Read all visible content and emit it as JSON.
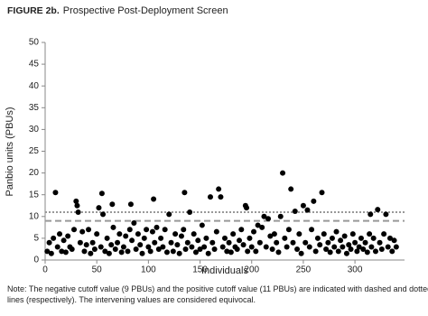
{
  "chart_data": {
    "type": "scatter",
    "title_label": "FIGURE 2b.",
    "title": "Prospective Post-Deployment Screen",
    "x_label": "Individuals",
    "y_label": "Panbio units (PBUs)",
    "note": [
      "Note: The negative cutoff value (9 PBUs) and the positive cutoff value (11 PBUs) are indicated with dashed and dotted",
      "lines (respectively). The intervening values are considered equivocal."
    ],
    "color": "#000000",
    "xlim": [
      0,
      348
    ],
    "xticks": [
      0,
      50,
      100,
      150,
      200,
      250,
      300
    ],
    "ylim": [
      0,
      50
    ],
    "yticks": [
      0,
      5,
      10,
      15,
      20,
      25,
      30,
      35,
      40,
      45,
      50
    ],
    "reference_lines": [
      {
        "value": 9,
        "style": "dashed",
        "color": "#999999"
      },
      {
        "value": 11,
        "style": "dotted",
        "color": "#999999"
      }
    ],
    "x": [
      2,
      4,
      6,
      8,
      10,
      12,
      14,
      16,
      18,
      20,
      22,
      24,
      26,
      28,
      30,
      31,
      32,
      34,
      36,
      38,
      40,
      42,
      44,
      46,
      48,
      50,
      52,
      54,
      55,
      56,
      58,
      60,
      62,
      64,
      65,
      66,
      68,
      70,
      72,
      74,
      76,
      78,
      80,
      82,
      83,
      84,
      86,
      88,
      90,
      92,
      94,
      96,
      98,
      100,
      102,
      104,
      105,
      106,
      108,
      110,
      112,
      114,
      116,
      118,
      120,
      122,
      124,
      126,
      128,
      130,
      132,
      134,
      135,
      136,
      138,
      140,
      142,
      144,
      146,
      148,
      150,
      152,
      154,
      156,
      158,
      160,
      162,
      164,
      166,
      168,
      170,
      172,
      174,
      176,
      178,
      180,
      182,
      184,
      186,
      188,
      190,
      192,
      194,
      195,
      196,
      198,
      200,
      202,
      204,
      206,
      208,
      210,
      212,
      214,
      216,
      218,
      220,
      222,
      224,
      226,
      228,
      230,
      232,
      234,
      236,
      238,
      240,
      242,
      244,
      246,
      248,
      250,
      252,
      254,
      256,
      258,
      260,
      262,
      264,
      266,
      268,
      270,
      272,
      274,
      276,
      278,
      280,
      282,
      284,
      286,
      288,
      290,
      292,
      294,
      296,
      298,
      300,
      302,
      304,
      306,
      308,
      310,
      312,
      314,
      315,
      316,
      318,
      320,
      322,
      324,
      326,
      328,
      330,
      332,
      334,
      336,
      338,
      340
    ],
    "values": [
      2,
      4,
      1.5,
      5,
      15.5,
      3,
      6,
      2,
      4.5,
      1.8,
      5.5,
      3,
      2.5,
      7,
      13.5,
      12.5,
      11,
      4,
      6.5,
      2,
      3.5,
      7,
      1.5,
      4,
      2.5,
      6,
      12,
      3,
      15.3,
      10.5,
      2,
      5,
      1.5,
      3.5,
      12.8,
      7.5,
      2.5,
      4,
      6,
      1.8,
      3,
      5.5,
      2,
      7,
      12.8,
      4.5,
      8.5,
      2.5,
      6,
      3.5,
      1.5,
      5,
      7,
      3,
      2,
      6.5,
      14,
      4,
      7.5,
      2.5,
      5,
      3,
      7,
      1.8,
      10.5,
      4,
      2,
      6,
      3.5,
      1.5,
      5.5,
      7,
      15.5,
      2.5,
      4,
      11,
      3,
      6,
      1.8,
      4.5,
      2.5,
      8,
      3,
      5,
      1.5,
      14.5,
      4,
      2.5,
      6.5,
      16.3,
      14.5,
      3,
      5,
      2,
      4,
      1.8,
      6,
      3,
      2.5,
      4.5,
      7,
      3.5,
      12.5,
      12,
      2,
      5,
      3,
      6.5,
      2,
      8,
      4,
      7.5,
      10,
      3,
      9.5,
      5.5,
      2.5,
      6,
      4,
      1.8,
      10,
      20,
      5,
      3,
      7,
      16.3,
      4,
      11.2,
      2.5,
      6,
      1.5,
      12.5,
      4,
      11.5,
      3,
      7,
      13.5,
      2,
      5,
      3.5,
      15.5,
      6,
      2.5,
      4,
      1.8,
      5,
      3,
      6.5,
      2,
      4.5,
      3,
      5.5,
      1.5,
      3.5,
      2.5,
      6,
      4,
      2,
      3,
      5,
      2.5,
      4,
      1.8,
      6,
      10.5,
      3,
      5,
      2,
      11.6,
      4,
      2.5,
      6,
      10.5,
      3,
      5,
      2,
      4.5,
      3
    ]
  }
}
